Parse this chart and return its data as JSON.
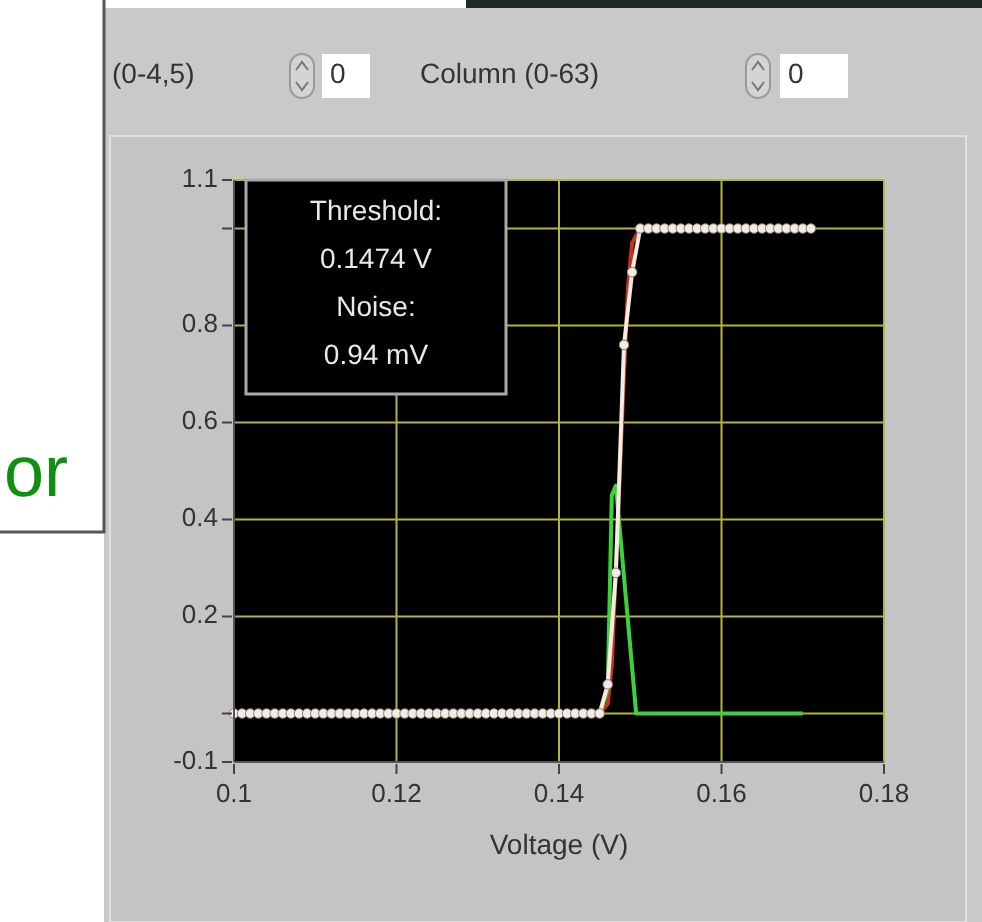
{
  "chart_data": {
    "type": "line",
    "xlabel": "Voltage (V)",
    "xlim": [
      0.1,
      0.18
    ],
    "xticks": [
      0.1,
      0.12,
      0.14,
      0.16,
      0.18
    ],
    "ylim": [
      -0.1,
      1.1
    ],
    "yticks": [
      1.1,
      {
        "value": 1,
        "label": null
      },
      0.8,
      0.6,
      0.4,
      0.2,
      {
        "value": 0,
        "label": null
      },
      -0.1
    ],
    "grid": true,
    "series": [
      {
        "color": "#c8321e",
        "x": [
          0.1,
          0.145,
          0.146,
          0.1465,
          0.147,
          0.1475,
          0.148,
          0.1485,
          0.149,
          0.15,
          0.171
        ],
        "values": [
          0,
          0,
          0.02,
          0.1,
          0.3,
          0.5,
          0.7,
          0.88,
          0.97,
          1,
          1
        ]
      },
      {
        "color": "#3cd23c",
        "x": [
          0.1,
          0.145,
          0.146,
          0.1465,
          0.147,
          0.1495,
          0.17
        ],
        "values": [
          0,
          0,
          0.05,
          0.45,
          0.47,
          0,
          0
        ]
      },
      {
        "color": "#f2ece4",
        "marker": "circle",
        "x": [
          0.1,
          0.101,
          0.102,
          0.103,
          0.104,
          0.105,
          0.106,
          0.107,
          0.108,
          0.109,
          0.11,
          0.111,
          0.112,
          0.113,
          0.114,
          0.115,
          0.116,
          0.117,
          0.118,
          0.119,
          0.12,
          0.121,
          0.122,
          0.123,
          0.124,
          0.125,
          0.126,
          0.127,
          0.128,
          0.129,
          0.13,
          0.131,
          0.132,
          0.133,
          0.134,
          0.135,
          0.136,
          0.137,
          0.138,
          0.139,
          0.14,
          0.141,
          0.142,
          0.143,
          0.144,
          0.145,
          0.146,
          0.147,
          0.148,
          0.149,
          0.15,
          0.151,
          0.152,
          0.153,
          0.154,
          0.155,
          0.156,
          0.157,
          0.158,
          0.159,
          0.16,
          0.161,
          0.162,
          0.163,
          0.164,
          0.165,
          0.166,
          0.167,
          0.168,
          0.169,
          0.17,
          0.171
        ],
        "values": [
          0,
          0,
          0,
          0,
          0,
          0,
          0,
          0,
          0,
          0,
          0,
          0,
          0,
          0,
          0,
          0,
          0,
          0,
          0,
          0,
          0,
          0,
          0,
          0,
          0,
          0,
          0,
          0,
          0,
          0,
          0,
          0,
          0,
          0,
          0,
          0,
          0,
          0,
          0,
          0,
          0,
          0,
          0,
          0,
          0,
          0,
          0.06,
          0.29,
          0.76,
          0.91,
          1,
          1,
          1,
          1,
          1,
          1,
          1,
          1,
          1,
          1,
          1,
          1,
          1,
          1,
          1,
          1,
          1,
          1,
          1,
          1,
          1,
          1
        ]
      }
    ],
    "annotations": [
      "Threshold:\n0.1474 V\nNoise:\n0.94 mV",
      "(0-4,5)",
      "0",
      "Column (0-63)",
      "0",
      "or"
    ]
  }
}
